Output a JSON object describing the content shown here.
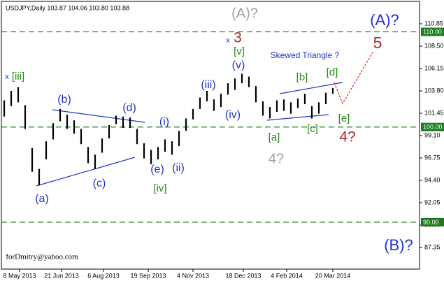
{
  "chart_data": {
    "type": "ohlc",
    "title": "USDJPY,Daily  103.87 104.06 103.80 103.88",
    "color": "#000000",
    "x": [
      -11,
      -6,
      -1,
      4,
      9,
      14,
      19,
      24,
      29,
      34,
      39,
      44,
      49,
      54,
      59,
      64,
      69,
      74,
      79,
      84,
      89,
      94,
      99,
      104,
      109,
      114,
      119,
      124,
      129,
      134,
      139,
      144,
      149,
      154,
      159,
      164,
      169,
      174,
      179,
      184,
      189,
      194,
      199,
      204,
      209,
      214,
      219,
      224
    ],
    "high": [
      102.8,
      103.8,
      104.2,
      102.3,
      97.8,
      95.6,
      98.5,
      100.4,
      101.9,
      101.3,
      100.7,
      99.8,
      97.9,
      97.1,
      98.8,
      100.2,
      101.2,
      101.1,
      101.0,
      99.8,
      98.3,
      97.6,
      97.9,
      98.7,
      98.5,
      99.6,
      100.9,
      101.9,
      103.1,
      103.8,
      102.9,
      103.5,
      104.6,
      105.1,
      105.6,
      105.3,
      104.3,
      102.7,
      102.1,
      102.8,
      102.9,
      102.6,
      103.0,
      103.5,
      102.2,
      102.6,
      103.6,
      104.1
    ],
    "low": [
      101.1,
      102.2,
      102.6,
      99.8,
      95.3,
      93.9,
      96.6,
      98.7,
      100.6,
      99.8,
      99.3,
      98.2,
      96.2,
      95.6,
      97.3,
      98.8,
      100.3,
      99.9,
      99.9,
      98.2,
      96.7,
      96.1,
      96.6,
      97.4,
      97.1,
      98.0,
      99.6,
      100.8,
      101.9,
      102.7,
      101.7,
      102.1,
      103.4,
      103.9,
      104.6,
      104.2,
      102.6,
      101.2,
      100.9,
      101.6,
      101.7,
      101.4,
      102.0,
      102.4,
      100.9,
      101.4,
      102.4,
      103.5
    ],
    "xlim": [
      -14,
      286
    ],
    "xticks": [
      {
        "value": 0,
        "label": "8 May 2013"
      },
      {
        "value": 30,
        "label": "21 Jun 2013"
      },
      {
        "value": 60,
        "label": "6 Aug 2013"
      },
      {
        "value": 92,
        "label": "19 Sep 2013"
      },
      {
        "value": 124,
        "label": "4 Nov 2013"
      },
      {
        "value": 160,
        "label": "18 Dec 2013"
      },
      {
        "value": 191,
        "label": "4 Feb 2014"
      },
      {
        "value": 224,
        "label": "20 Mar 2014"
      }
    ],
    "ylim": [
      85.07,
      112.98
    ],
    "yticks": [
      {
        "value": 110.85,
        "label": "110.85"
      },
      {
        "value": 108.5,
        "label": "108.50"
      },
      {
        "value": 106.15,
        "label": "106.15"
      },
      {
        "value": 103.8,
        "label": "103.80"
      },
      {
        "value": 101.45,
        "label": "101.45"
      },
      {
        "value": 99.1,
        "label": "99.10"
      },
      {
        "value": 96.75,
        "label": "96.75"
      },
      {
        "value": 94.4,
        "label": "94.40"
      },
      {
        "value": 92.05,
        "label": "92.05"
      },
      {
        "value": 89.7,
        "label": "89.70"
      },
      {
        "value": 87.35,
        "label": "87.35"
      }
    ],
    "levels": [
      {
        "value": 110,
        "label": "110.00"
      },
      {
        "value": 100,
        "label": "100.00"
      },
      {
        "value": 90,
        "label": "90.00"
      }
    ],
    "level_color": "#1e7a1e",
    "annotations": [
      {
        "text": "x",
        "color": "#2233cc"
      },
      {
        "text": "[iii]",
        "color": "#2a8a1a"
      },
      {
        "text": "(a)",
        "color": "#2233cc"
      },
      {
        "text": "(b)",
        "color": "#2233cc"
      },
      {
        "text": "(c)",
        "color": "#2233cc"
      },
      {
        "text": "(d)",
        "color": "#2233cc"
      },
      {
        "text": "(e)",
        "color": "#2233cc"
      },
      {
        "text": "(i)",
        "color": "#2233cc"
      },
      {
        "text": "(ii)",
        "color": "#2233cc"
      },
      {
        "text": "[iv]",
        "color": "#2a8a1a"
      },
      {
        "text": "(iii)",
        "color": "#2233cc"
      },
      {
        "text": "(iv)",
        "color": "#2233cc"
      },
      {
        "text": "(v)",
        "color": "#2233cc"
      },
      {
        "text": "x",
        "color": "#2233cc"
      },
      {
        "text": "3",
        "color": "#a52a2a"
      },
      {
        "text": "[v]",
        "color": "#2a8a1a"
      },
      {
        "text": "(A)?",
        "color": "#a0a0a0"
      },
      {
        "text": "Skewed Triangle ?",
        "color": "#2233cc"
      },
      {
        "text": "[a]",
        "color": "#2a8a1a"
      },
      {
        "text": "4?",
        "color": "#a0a0a0"
      },
      {
        "text": "[b]",
        "color": "#2a8a1a"
      },
      {
        "text": "[c]",
        "color": "#2a8a1a"
      },
      {
        "text": "[d]",
        "color": "#2a8a1a"
      },
      {
        "text": "[e]",
        "color": "#2a8a1a"
      },
      {
        "text": "4?",
        "color": "#a52a2a"
      },
      {
        "text": "5",
        "color": "#a52a2a"
      },
      {
        "text": "(A)?",
        "color": "#2233cc"
      },
      {
        "text": "(B)?",
        "color": "#2233cc"
      },
      {
        "text": "forDmitry@yahoo.com",
        "color": "#000000"
      }
    ]
  }
}
